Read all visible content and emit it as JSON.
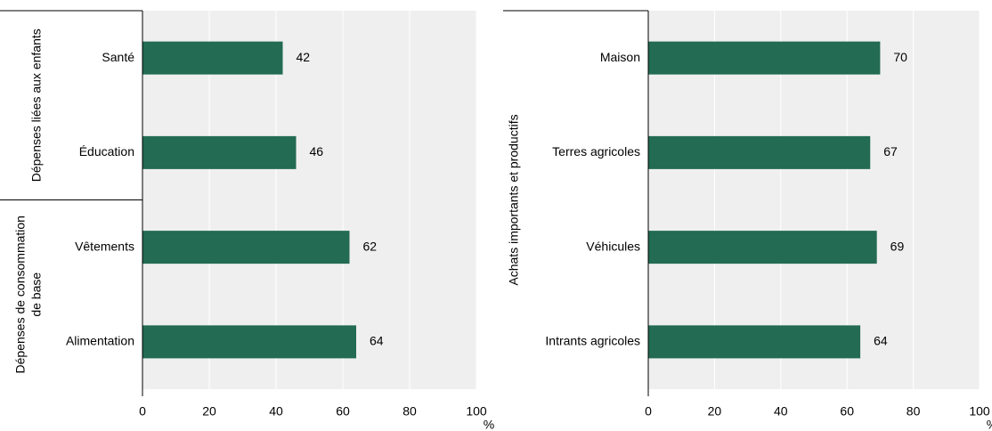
{
  "chart_data": [
    {
      "type": "bar",
      "orientation": "horizontal",
      "color": "#236b53",
      "grid": true,
      "groups": [
        {
          "name": [
            "Dépenses liées aux enfants"
          ],
          "categories": [
            "Santé",
            "Éducation"
          ],
          "values": [
            42,
            46
          ]
        },
        {
          "name": [
            "Dépenses de consommation",
            "de base"
          ],
          "categories": [
            "Vêtements",
            "Alimentation"
          ],
          "values": [
            62,
            64
          ]
        }
      ],
      "xlim": [
        0,
        100
      ],
      "xticks": [
        0,
        20,
        40,
        60,
        80,
        100
      ],
      "xlabel": "%"
    },
    {
      "type": "bar",
      "orientation": "horizontal",
      "color": "#236b53",
      "grid": true,
      "groups": [
        {
          "name": [
            "Achats importants et productifs"
          ],
          "categories": [
            "Maison",
            "Terres agricoles",
            "Véhicules",
            "Intrants agricoles"
          ],
          "values": [
            70,
            67,
            69,
            64
          ]
        }
      ],
      "xlim": [
        0,
        100
      ],
      "xticks": [
        0,
        20,
        40,
        60,
        80,
        100
      ],
      "xlabel": "%"
    }
  ]
}
